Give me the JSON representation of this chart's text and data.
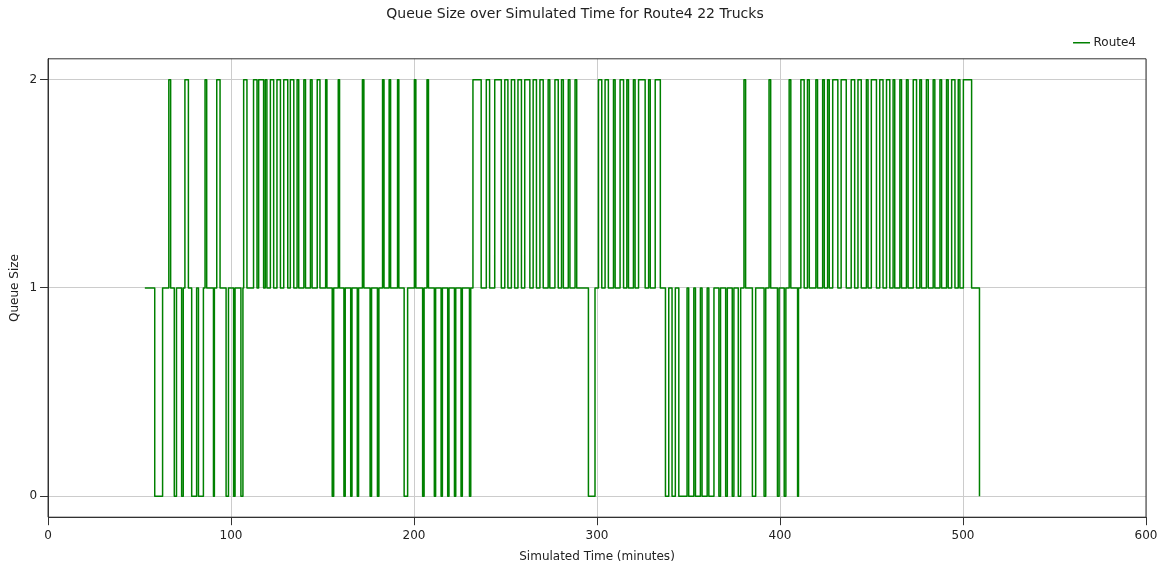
{
  "chart_data": {
    "type": "step",
    "title": "Queue Size over Simulated Time for Route4 22 Trucks",
    "xlabel": "Simulated Time (minutes)",
    "ylabel": "Queue Size",
    "x": [
      52.9,
      58.3,
      62.6,
      66.0,
      67.0,
      69.0,
      70.2,
      73.0,
      73.9,
      74.8,
      76.7,
      78.5,
      81.2,
      82.2,
      84.9,
      85.8,
      86.7,
      90.4,
      90.9,
      92.2,
      94.0,
      97.3,
      98.6,
      101.4,
      102.2,
      105.4,
      106.5,
      106.9,
      108.7,
      112.3,
      114.2,
      115.1,
      117.8,
      118.7,
      119.6,
      121.5,
      123.3,
      125.1,
      127.0,
      128.8,
      131.0,
      132.4,
      134.3,
      136.1,
      137.0,
      139.8,
      140.7,
      143.4,
      144.3,
      147.1,
      148.6,
      151.7,
      152.4,
      155.3,
      156.1,
      158.6,
      159.3,
      161.7,
      162.4,
      165.4,
      166.1,
      169.0,
      169.7,
      171.8,
      172.6,
      176.0,
      176.8,
      180.0,
      180.8,
      182.8,
      183.6,
      186.4,
      187.2,
      191.0,
      191.7,
      194.6,
      196.5,
      200.2,
      201.0,
      204.7,
      205.5,
      207.1,
      207.9,
      211.1,
      211.8,
      214.8,
      215.5,
      218.4,
      219.1,
      222.1,
      222.8,
      225.7,
      226.4,
      230.3,
      231.0,
      232.2,
      236.7,
      239.5,
      241.3,
      244.1,
      247.7,
      249.6,
      251.3,
      253.2,
      255.0,
      256.8,
      258.7,
      260.5,
      263.3,
      265.1,
      266.9,
      268.8,
      270.6,
      273.3,
      274.2,
      277.0,
      278.8,
      280.6,
      281.6,
      284.3,
      285.2,
      288.0,
      288.9,
      295.3,
      298.9,
      300.8,
      302.6,
      304.4,
      306.2,
      309.0,
      309.9,
      312.6,
      314.5,
      316.3,
      317.2,
      319.9,
      320.8,
      322.7,
      326.3,
      328.2,
      329.1,
      331.8,
      334.6,
      337.4,
      339.2,
      341.0,
      342.8,
      344.7,
      349.2,
      350.1,
      352.9,
      353.8,
      356.5,
      357.4,
      360.2,
      361.1,
      363.9,
      366.6,
      367.5,
      370.3,
      371.2,
      373.9,
      374.8,
      377.2,
      378.5,
      380.3,
      381.2,
      384.9,
      386.7,
      391.3,
      392.2,
      394.0,
      394.9,
      398.6,
      399.5,
      402.3,
      403.2,
      405.0,
      405.9,
      409.6,
      410.1,
      411.4,
      413.2,
      415.0,
      416.0,
      419.6,
      420.5,
      423.3,
      424.2,
      426.0,
      426.9,
      428.8,
      431.6,
      433.4,
      436.2,
      438.9,
      440.8,
      442.6,
      444.4,
      447.2,
      448.1,
      449.9,
      452.7,
      454.5,
      456.3,
      458.2,
      460.0,
      461.8,
      462.7,
      465.5,
      466.4,
      469.1,
      470.0,
      472.8,
      474.6,
      476.4,
      477.3,
      480.0,
      481.0,
      483.7,
      484.6,
      487.4,
      488.3,
      491.0,
      491.9,
      493.8,
      495.6,
      497.4,
      498.3,
      500.2,
      504.7,
      509.0
    ],
    "series": [
      {
        "name": "Route4",
        "color": "#008000",
        "values": [
          1,
          0,
          1,
          2,
          1,
          0,
          1,
          0,
          1,
          2,
          1,
          0,
          1,
          0,
          1,
          2,
          1,
          0,
          1,
          2,
          1,
          0,
          1,
          0,
          1,
          0,
          1,
          2,
          1,
          2,
          1,
          2,
          1,
          2,
          1,
          2,
          1,
          2,
          1,
          2,
          1,
          2,
          1,
          2,
          1,
          2,
          1,
          2,
          1,
          2,
          1,
          2,
          1,
          0,
          1,
          2,
          1,
          0,
          1,
          0,
          1,
          0,
          1,
          2,
          1,
          0,
          1,
          0,
          1,
          2,
          1,
          2,
          1,
          2,
          1,
          0,
          1,
          2,
          1,
          0,
          1,
          2,
          1,
          0,
          1,
          0,
          1,
          0,
          1,
          0,
          1,
          0,
          1,
          0,
          1,
          2,
          1,
          2,
          1,
          2,
          1,
          2,
          1,
          2,
          1,
          2,
          1,
          2,
          1,
          2,
          1,
          2,
          1,
          2,
          1,
          2,
          1,
          2,
          1,
          2,
          1,
          2,
          1,
          0,
          1,
          2,
          1,
          2,
          1,
          2,
          1,
          2,
          1,
          2,
          1,
          2,
          1,
          2,
          1,
          2,
          1,
          2,
          1,
          0,
          1,
          0,
          1,
          0,
          1,
          0,
          1,
          0,
          1,
          0,
          1,
          0,
          1,
          0,
          1,
          0,
          1,
          0,
          1,
          0,
          1,
          2,
          1,
          0,
          1,
          0,
          1,
          2,
          1,
          0,
          1,
          0,
          1,
          2,
          1,
          0,
          1,
          2,
          1,
          2,
          1,
          2,
          1,
          2,
          1,
          2,
          1,
          2,
          1,
          2,
          1,
          2,
          1,
          2,
          1,
          2,
          1,
          2,
          1,
          2,
          1,
          2,
          1,
          2,
          1,
          2,
          1,
          2,
          1,
          2,
          1,
          2,
          1,
          2,
          1,
          2,
          1,
          2,
          1,
          2,
          1,
          2,
          1,
          2,
          1,
          2,
          1,
          0
        ]
      }
    ],
    "xlim": [
      0,
      600
    ],
    "xticks": [
      0,
      100,
      200,
      300,
      400,
      500,
      600
    ],
    "ylim": [
      -0.1,
      2.1
    ],
    "yticks": [
      0,
      1,
      2
    ],
    "grid": true,
    "legend": "top right"
  }
}
